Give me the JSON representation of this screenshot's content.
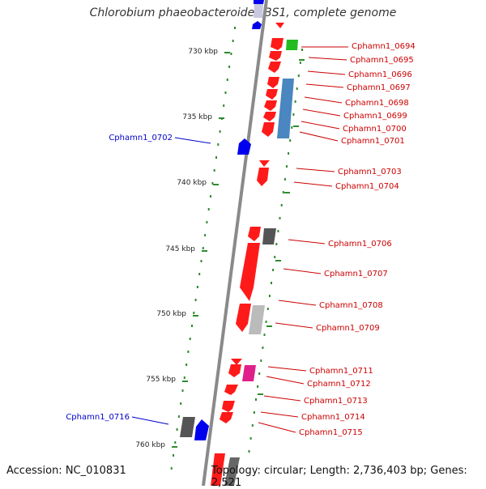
{
  "title": "Chlorobium phaeobacteroides BS1, complete genome",
  "footer": {
    "accession": "Accession: NC_010831",
    "topology": "Topology: circular; Length: 2,736,403 bp; Genes: 2,521"
  },
  "scale_labels": [
    "730 kbp",
    "735 kbp",
    "740 kbp",
    "745 kbp",
    "750 kbp",
    "755 kbp",
    "760 kbp"
  ],
  "colors": {
    "backbone": "#8a8a8a",
    "tick": "#2e8b2e",
    "forward_label": "#0000cc",
    "reverse_label": "#cc0000",
    "red_gene": "#ff1a1a",
    "blue_gene": "#0000ee",
    "steelblue_gene": "#4a86c0",
    "green_gene": "#22bb22",
    "magenta_gene": "#e0208a",
    "gray_gene": "#555555",
    "lightgray_gene": "#bbbbbb"
  },
  "genes": {
    "reverse": [
      "Cphamn1_0694",
      "Cphamn1_0695",
      "Cphamn1_0696",
      "Cphamn1_0697",
      "Cphamn1_0698",
      "Cphamn1_0699",
      "Cphamn1_0700",
      "Cphamn1_0701",
      "Cphamn1_0703",
      "Cphamn1_0704",
      "Cphamn1_0706",
      "Cphamn1_0707",
      "Cphamn1_0708",
      "Cphamn1_0709",
      "Cphamn1_0711",
      "Cphamn1_0712",
      "Cphamn1_0713",
      "Cphamn1_0714",
      "Cphamn1_0715"
    ],
    "forward": [
      "Cphamn1_0702",
      "Cphamn1_0716"
    ]
  }
}
